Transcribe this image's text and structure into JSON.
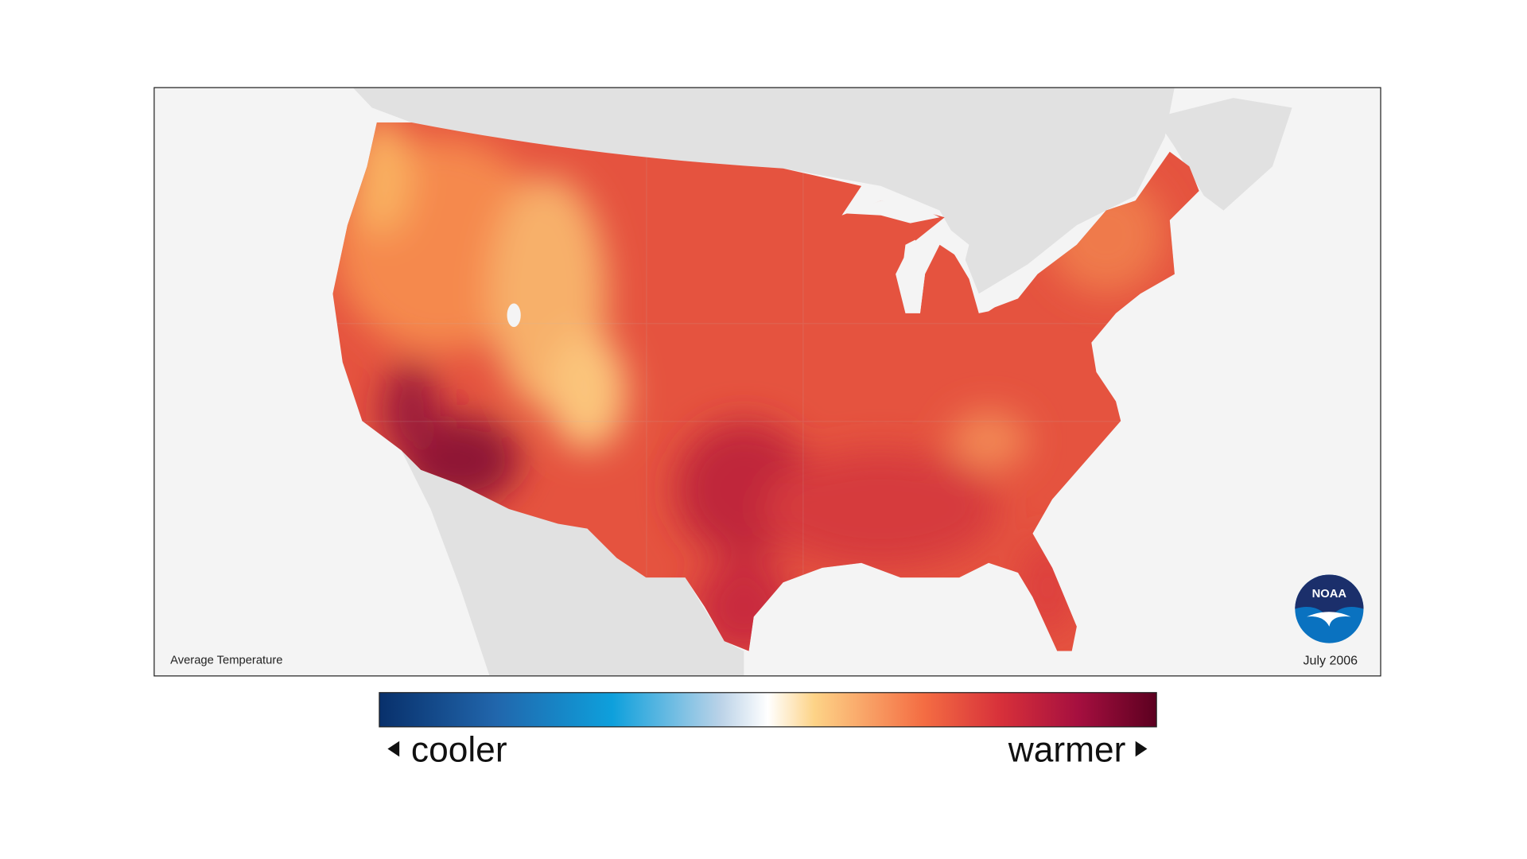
{
  "map": {
    "title": "Average Temperature",
    "date": "July 2006"
  },
  "legend": {
    "low_label": "cooler",
    "high_label": "warmer"
  },
  "logo": {
    "text": "NOAA"
  }
}
